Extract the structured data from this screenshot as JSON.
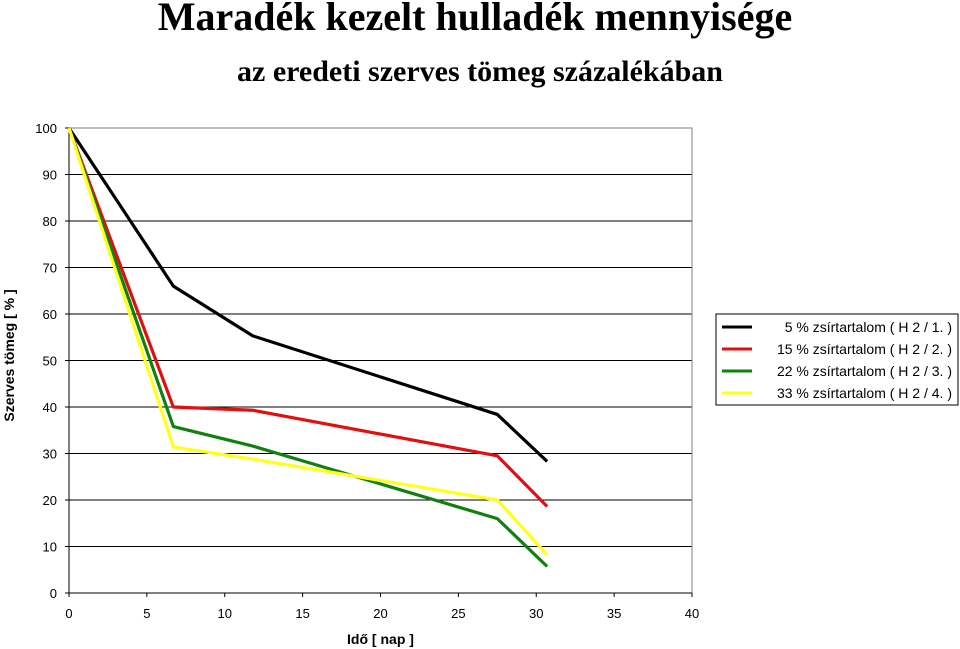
{
  "chart_data": {
    "type": "line",
    "title": "Maradék kezelt hulladék mennyisége",
    "subtitle": "az eredeti szerves tömeg százalékában",
    "xlabel": "Idő [ nap ]",
    "ylabel": "Szerves tömeg [ % ]",
    "xlim": [
      0,
      40
    ],
    "ylim": [
      0,
      100
    ],
    "xticks": [
      0,
      5,
      10,
      15,
      20,
      25,
      30,
      35,
      40
    ],
    "yticks": [
      0,
      10,
      20,
      30,
      40,
      50,
      60,
      70,
      80,
      90,
      100
    ],
    "grid": "horizontal",
    "legend_position": "right",
    "series": [
      {
        "name": "5 % zsírtartalom ( H  2 / 1. )",
        "color": "#000000",
        "x": [
          0,
          6.7,
          11.8,
          27.5,
          30.7
        ],
        "y": [
          100,
          66,
          55.3,
          38.4,
          28.3
        ]
      },
      {
        "name": "15 % zsírtartalom ( H  2 / 2. )",
        "color": "#e01010",
        "x": [
          0,
          6.7,
          11.8,
          27.5,
          30.7
        ],
        "y": [
          100,
          40,
          39.3,
          29.5,
          18.6
        ]
      },
      {
        "name": "22 % zsírtartalom ( H  2 / 3. )",
        "color": "#108010",
        "x": [
          0,
          6.7,
          11.8,
          27.5,
          30.7
        ],
        "y": [
          100,
          35.8,
          31.6,
          16,
          5.7
        ]
      },
      {
        "name": "33 % zsírtartalom ( H  2 / 4. )",
        "color": "#ffff20",
        "x": [
          0,
          6.7,
          11.8,
          27.5,
          30.7
        ],
        "y": [
          100,
          31.4,
          28.8,
          20,
          8.2
        ]
      }
    ]
  }
}
